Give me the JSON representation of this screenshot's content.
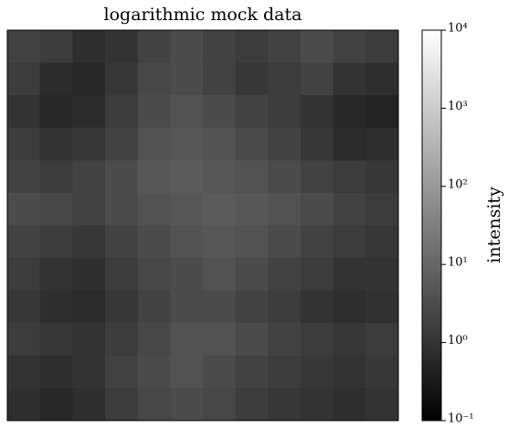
{
  "chart_data": {
    "type": "heatmap",
    "title": "logarithmic mock data",
    "colorbar_label": "intensity",
    "cmap": "gray",
    "log_scale": true,
    "clim": [
      0.1,
      10000
    ],
    "cticks": [
      {
        "value": 0.1,
        "label": "10⁻¹"
      },
      {
        "value": 1,
        "label": "10⁰"
      },
      {
        "value": 10,
        "label": "10¹"
      },
      {
        "value": 100,
        "label": "10²"
      },
      {
        "value": 1000,
        "label": "10³"
      },
      {
        "value": 10000,
        "label": "10⁴"
      }
    ],
    "values": [
      [
        2,
        1.5,
        0.8,
        1,
        2,
        3,
        2,
        1.5,
        2,
        3,
        2,
        1.5
      ],
      [
        1.5,
        0.7,
        0.6,
        1.2,
        2.5,
        3,
        2,
        1.2,
        1.5,
        2,
        1,
        0.8
      ],
      [
        1,
        0.6,
        0.7,
        1.5,
        3,
        4,
        3,
        2,
        1.5,
        1,
        0.6,
        0.5
      ],
      [
        1.5,
        1,
        1.2,
        2,
        4,
        5,
        4,
        3,
        2,
        1.2,
        0.7,
        0.8
      ],
      [
        2,
        1.5,
        2,
        3,
        5,
        6,
        5,
        4,
        3,
        2,
        1.5,
        1.2
      ],
      [
        3,
        2.5,
        2,
        3,
        4,
        5,
        6,
        5,
        4,
        3,
        2,
        1.5
      ],
      [
        2,
        1.5,
        1.2,
        2,
        3,
        4,
        5,
        4,
        3,
        2,
        1.5,
        1.2
      ],
      [
        1.5,
        1,
        0.8,
        1.5,
        2.5,
        3,
        4,
        3,
        2,
        1.5,
        1,
        1
      ],
      [
        1.2,
        0.8,
        0.7,
        1.2,
        2,
        3,
        3,
        2,
        1.5,
        1,
        0.8,
        0.9
      ],
      [
        1.5,
        1.2,
        1,
        1.5,
        2.5,
        4,
        4,
        3,
        2,
        1.5,
        1.2,
        1.5
      ],
      [
        1,
        0.8,
        1,
        2,
        3,
        4,
        3,
        2,
        1.5,
        1.2,
        1,
        1.2
      ],
      [
        0.8,
        0.6,
        0.8,
        1.5,
        2.5,
        3,
        2.5,
        1.5,
        1.2,
        1,
        0.8,
        1
      ]
    ]
  }
}
